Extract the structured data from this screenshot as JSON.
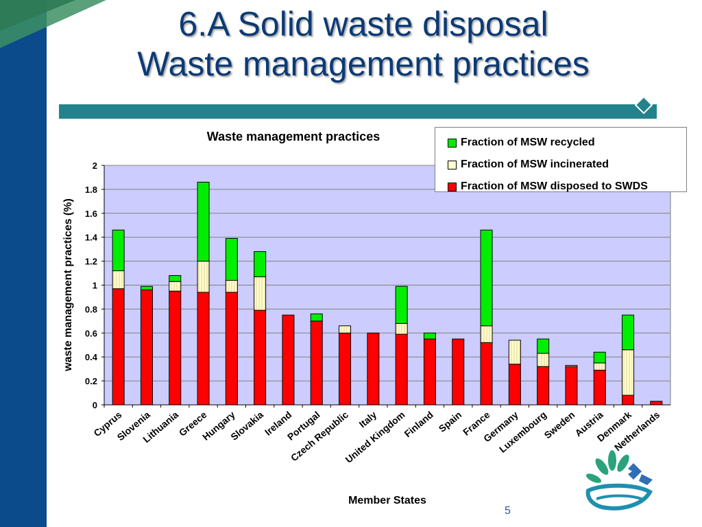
{
  "slide": {
    "title_line1": "6.A Solid waste disposal",
    "title_line2": "Waste management practices",
    "page_number": "5"
  },
  "colors": {
    "band": "#0b4a8b",
    "title": "#0b3a75",
    "title_bar": "#23838c",
    "plot_bg": "#ccccff",
    "recycled": "#00ee00",
    "incinerated": "#ffffcc",
    "disposed": "#ff0000"
  },
  "chart_data": {
    "type": "bar",
    "stacked": true,
    "title": "Waste management practices",
    "xlabel": "Member States",
    "ylabel": "waste management practices (%)",
    "ylim": [
      0,
      2
    ],
    "yticks": [
      "0",
      "0.2",
      "0.4",
      "0.6",
      "0.8",
      "1",
      "1.2",
      "1.4",
      "1.6",
      "1.8",
      "2"
    ],
    "grid": true,
    "legend_position": "top-right",
    "categories": [
      "Cyprus",
      "Slovenia",
      "Lithuania",
      "Greece",
      "Hungary",
      "Slovakia",
      "Ireland",
      "Portugal",
      "Czech Republic",
      "Italy",
      "United Kingdom",
      "Finland",
      "Spain",
      "France",
      "Germany",
      "Luxembourg",
      "Sweden",
      "Austria",
      "Denmark",
      "Netherlands"
    ],
    "series": [
      {
        "name": "Fraction of MSW disposed to SWDS",
        "color": "#ff0000",
        "values": [
          0.97,
          0.96,
          0.95,
          0.94,
          0.94,
          0.79,
          0.75,
          0.7,
          0.6,
          0.6,
          0.59,
          0.55,
          0.55,
          0.52,
          0.34,
          0.32,
          0.32,
          0.29,
          0.08,
          0.03
        ]
      },
      {
        "name": "Fraction of MSW incinerated",
        "color": "#ffffcc",
        "values": [
          0.15,
          0.0,
          0.08,
          0.26,
          0.1,
          0.28,
          0.0,
          0.0,
          0.06,
          0.0,
          0.09,
          0.0,
          0.0,
          0.14,
          0.2,
          0.11,
          0.01,
          0.06,
          0.38,
          0.0
        ]
      },
      {
        "name": "Fraction of MSW recycled",
        "color": "#00ee00",
        "values": [
          0.34,
          0.03,
          0.05,
          0.66,
          0.35,
          0.21,
          0.0,
          0.06,
          0.0,
          0.0,
          0.31,
          0.05,
          0.0,
          0.8,
          0.0,
          0.12,
          0.0,
          0.09,
          0.29,
          0.0
        ]
      }
    ],
    "legend_order": [
      "Fraction of MSW recycled",
      "Fraction of MSW incinerated",
      "Fraction of MSW disposed to SWDS"
    ]
  }
}
